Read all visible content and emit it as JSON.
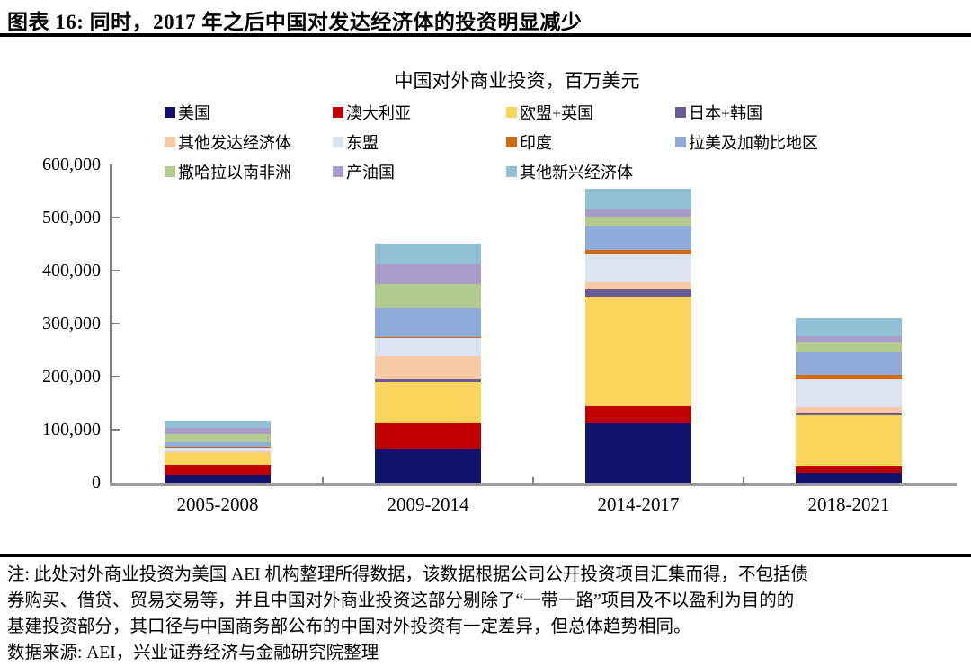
{
  "header": {
    "title": "图表 16: 同时，2017 年之后中国对发达经济体的投资明显减少"
  },
  "chart_data": {
    "type": "bar",
    "stacked": true,
    "title": "中国对外商业投资，百万美元",
    "categories": [
      "2005-2008",
      "2009-2014",
      "2014-2017",
      "2018-2021"
    ],
    "series": [
      {
        "name": "美国",
        "color": "#13136D",
        "values": [
          15000,
          62500,
          112000,
          18500
        ]
      },
      {
        "name": "澳大利亚",
        "color": "#C00000",
        "values": [
          19500,
          49500,
          32000,
          11500
        ]
      },
      {
        "name": "欧盟+英国",
        "color": "#FBD45C",
        "values": [
          21000,
          77500,
          206000,
          96500
        ]
      },
      {
        "name": "日本+韩国",
        "color": "#6A5A96",
        "values": [
          1000,
          4500,
          13500,
          4500
        ]
      },
      {
        "name": "其他发达经济体",
        "color": "#F7C9A4",
        "values": [
          2000,
          45000,
          13500,
          11500
        ]
      },
      {
        "name": "东盟",
        "color": "#DCE3F2",
        "values": [
          7000,
          34000,
          53000,
          52500
        ]
      },
      {
        "name": "印度",
        "color": "#D2690F",
        "values": [
          3000,
          2000,
          9000,
          7500
        ]
      },
      {
        "name": "拉美及加勒比地区",
        "color": "#8FAADC",
        "values": [
          8000,
          54000,
          43500,
          43500
        ]
      },
      {
        "name": "撒哈拉以南非洲",
        "color": "#B3CB8F",
        "values": [
          15500,
          45000,
          18500,
          18500
        ]
      },
      {
        "name": "产油国",
        "color": "#A79DC8",
        "values": [
          11000,
          38500,
          13500,
          12500
        ]
      },
      {
        "name": "其他新兴经济体",
        "color": "#92C0D5",
        "values": [
          14000,
          38500,
          40000,
          34000
        ]
      }
    ],
    "totals_approx": [
      117000,
      451000,
      555000,
      311000
    ],
    "ylim": [
      0,
      600000
    ],
    "ytick_interval": 100000,
    "ytick_labels": [
      "0",
      "100,000",
      "200,000",
      "300,000",
      "400,000",
      "500,000",
      "600,000"
    ],
    "grid": false,
    "legend_position": "top",
    "axis_color": "#7f7f7f",
    "baseline_color": "#9c9c9c"
  },
  "footer": {
    "note_lines": [
      "注: 此处对外商业投资为美国 AEI 机构整理所得数据，该数据根据公司公开投资项目汇集而得，不包括债",
      "券购买、借贷、贸易交易等，并且中国对外商业投资这部分剔除了“一带一路”项目及不以盈利为目的的",
      "基建投资部分，其口径与中国商务部公布的中国对外投资有一定差异，但总体趋势相同。"
    ],
    "source": "数据来源: AEI，兴业证券经济与金融研究院整理"
  }
}
